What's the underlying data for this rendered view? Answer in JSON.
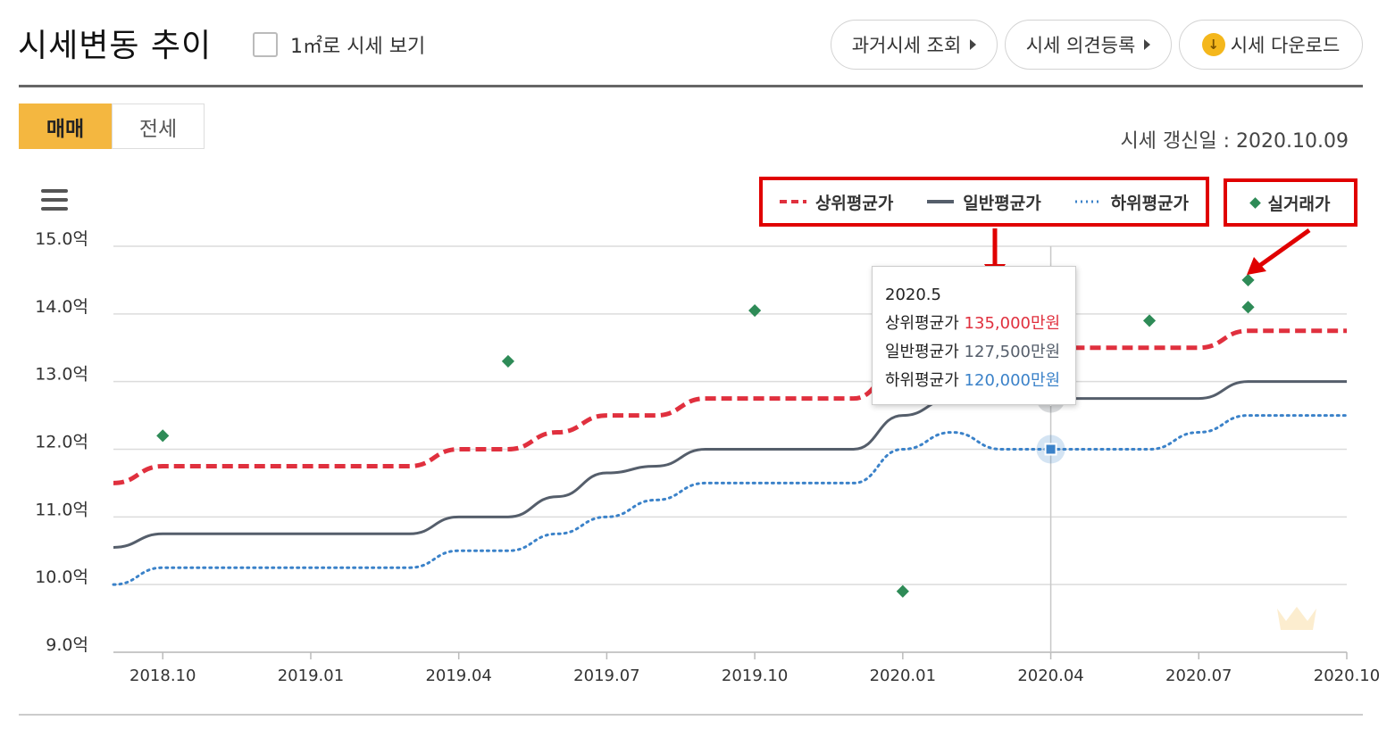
{
  "header": {
    "title": "시세변동 추이",
    "sqm_toggle_label": "1㎡로 시세 보기",
    "buttons": {
      "past": "과거시세 조회",
      "opinion": "시세 의견등록",
      "download": "시세 다운로드"
    }
  },
  "tabs": [
    {
      "label": "매매",
      "active": true
    },
    {
      "label": "전세",
      "active": false
    }
  ],
  "update_text": "시세 갱신일 : 2020.10.09",
  "tooltip": {
    "date": "2020.5",
    "rows": [
      {
        "label": "상위평균가",
        "value": "135,000",
        "unit": "만원"
      },
      {
        "label": "일반평균가",
        "value": "127,500",
        "unit": "만원"
      },
      {
        "label": "하위평균가",
        "value": "120,000",
        "unit": "만원"
      }
    ]
  },
  "colors": {
    "upper": "#e0303e",
    "mid": "#555e6b",
    "lower": "#3b82c9",
    "trade": "#2e8b57",
    "accent": "#f4b740",
    "annotation": "#e00000"
  },
  "icons": {
    "menu": "hamburger-icon",
    "download": "download-icon",
    "arrow": "caret-right-icon"
  },
  "chart_data": {
    "type": "line",
    "y_tick_labels": [
      "15.0억",
      "14.0억",
      "13.0억",
      "12.0억",
      "11.0억",
      "10.0억",
      "9.0억"
    ],
    "y_ticks": [
      15,
      14,
      13,
      12,
      11,
      10,
      9
    ],
    "ylim": [
      9,
      15
    ],
    "x_tick_labels": [
      "2018.10",
      "2019.01",
      "2019.04",
      "2019.07",
      "2019.10",
      "2020.01",
      "2020.04",
      "2020.07",
      "2020.10"
    ],
    "x_tick_months": [
      0,
      3,
      6,
      9,
      12,
      15,
      18,
      21,
      24
    ],
    "xlim_months": [
      -1,
      24
    ],
    "grid": true,
    "legend_position": "top-right",
    "series": [
      {
        "name": "상위평균가",
        "style": "dashed",
        "x": [
          -1,
          0,
          5,
          6,
          7,
          8,
          9,
          10,
          11,
          12,
          13,
          14,
          15,
          16,
          17,
          18,
          19,
          20,
          21,
          22,
          23,
          24
        ],
        "values": [
          11.5,
          11.75,
          11.75,
          12.0,
          12.0,
          12.25,
          12.5,
          12.5,
          12.75,
          12.75,
          12.75,
          12.75,
          13.25,
          13.5,
          13.5,
          13.5,
          13.5,
          13.5,
          13.5,
          13.75,
          13.75,
          13.75
        ]
      },
      {
        "name": "일반평균가",
        "style": "solid",
        "x": [
          -1,
          0,
          5,
          6,
          7,
          8,
          9,
          10,
          11,
          12,
          13,
          14,
          15,
          16,
          17,
          18,
          19,
          20,
          21,
          22,
          23,
          24
        ],
        "values": [
          10.55,
          10.75,
          10.75,
          11.0,
          11.0,
          11.3,
          11.65,
          11.75,
          12.0,
          12.0,
          12.0,
          12.0,
          12.5,
          12.75,
          12.75,
          12.75,
          12.75,
          12.75,
          12.75,
          13.0,
          13.0,
          13.0
        ]
      },
      {
        "name": "하위평균가",
        "style": "dotted",
        "x": [
          -1,
          0,
          5,
          6,
          7,
          8,
          9,
          10,
          11,
          12,
          13,
          14,
          15,
          16,
          17,
          18,
          19,
          20,
          21,
          22,
          23,
          24
        ],
        "values": [
          10.0,
          10.25,
          10.25,
          10.5,
          10.5,
          10.75,
          11.0,
          11.25,
          11.5,
          11.5,
          11.5,
          11.5,
          12.0,
          12.25,
          12.0,
          12.0,
          12.0,
          12.0,
          12.25,
          12.5,
          12.5,
          12.5
        ]
      }
    ],
    "trades": {
      "name": "실거래가",
      "x": [
        0,
        7,
        12,
        15,
        20,
        22,
        22
      ],
      "values": [
        12.2,
        13.3,
        14.05,
        9.9,
        13.9,
        14.1,
        14.5
      ]
    },
    "highlight": {
      "x": 18,
      "upper": 13.5,
      "mid": 12.75,
      "lower": 12.0
    }
  }
}
